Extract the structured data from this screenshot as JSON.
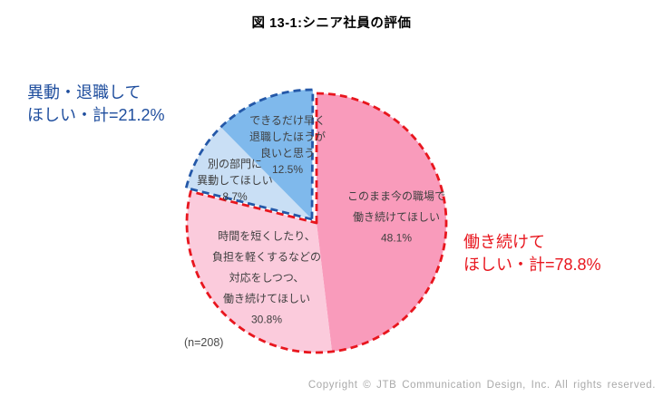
{
  "title": "図 13-1:シニア社員の評価",
  "sample_label": "(n=208)",
  "copyright": "Copyright © JTB Communication Design, Inc. All rights reserved.",
  "annotations": {
    "left": {
      "line1": "異動・退職して",
      "line2": "ほしい・計=21.2%",
      "color": "#1f4e9e"
    },
    "right": {
      "line1": "働き続けて",
      "line2": "ほしい・計=78.8%",
      "color": "#e8161e"
    }
  },
  "chart_data": {
    "type": "pie",
    "title": "図 13-1:シニア社員の評価",
    "n": 208,
    "start_angle_deg": 0,
    "direction": "clockwise",
    "slices": [
      {
        "label": "このまま今の職場で働き続けてほしい",
        "label_lines": [
          "このまま今の職場で",
          "働き続けてほしい",
          "48.1%"
        ],
        "value": 48.1,
        "color": "#f99bbb",
        "group": "働き続けてほしい・計"
      },
      {
        "label": "時間を短くしたり、負担を軽くするなどの対応をしつつ、働き続けてほしい",
        "label_lines": [
          "時間を短くしたり、",
          "負担を軽くするなどの",
          "対応をしつつ、",
          "働き続けてほしい",
          "30.8%"
        ],
        "value": 30.8,
        "color": "#fbcbdc",
        "group": "働き続けてほしい・計"
      },
      {
        "label": "別の部門に異動してほしい",
        "label_lines": [
          "別の部門に",
          "異動してほしい",
          "8.7%"
        ],
        "value": 8.7,
        "color": "#c9dff5",
        "group": "異動・退職してほしい・計"
      },
      {
        "label": "できるだけ早く退職したほうが良いと思う",
        "label_lines": [
          "できるだけ早く",
          "退職したほうが",
          "良いと思う",
          "12.5%"
        ],
        "value": 12.5,
        "color": "#7fb9ec",
        "group": "異動・退職してほしい・計"
      }
    ],
    "groups": [
      {
        "name": "働き続けてほしい・計",
        "total": 78.8,
        "outline_color": "#e8161e"
      },
      {
        "name": "異動・退職してほしい・計",
        "total": 21.2,
        "outline_color": "#2458a8"
      }
    ]
  }
}
